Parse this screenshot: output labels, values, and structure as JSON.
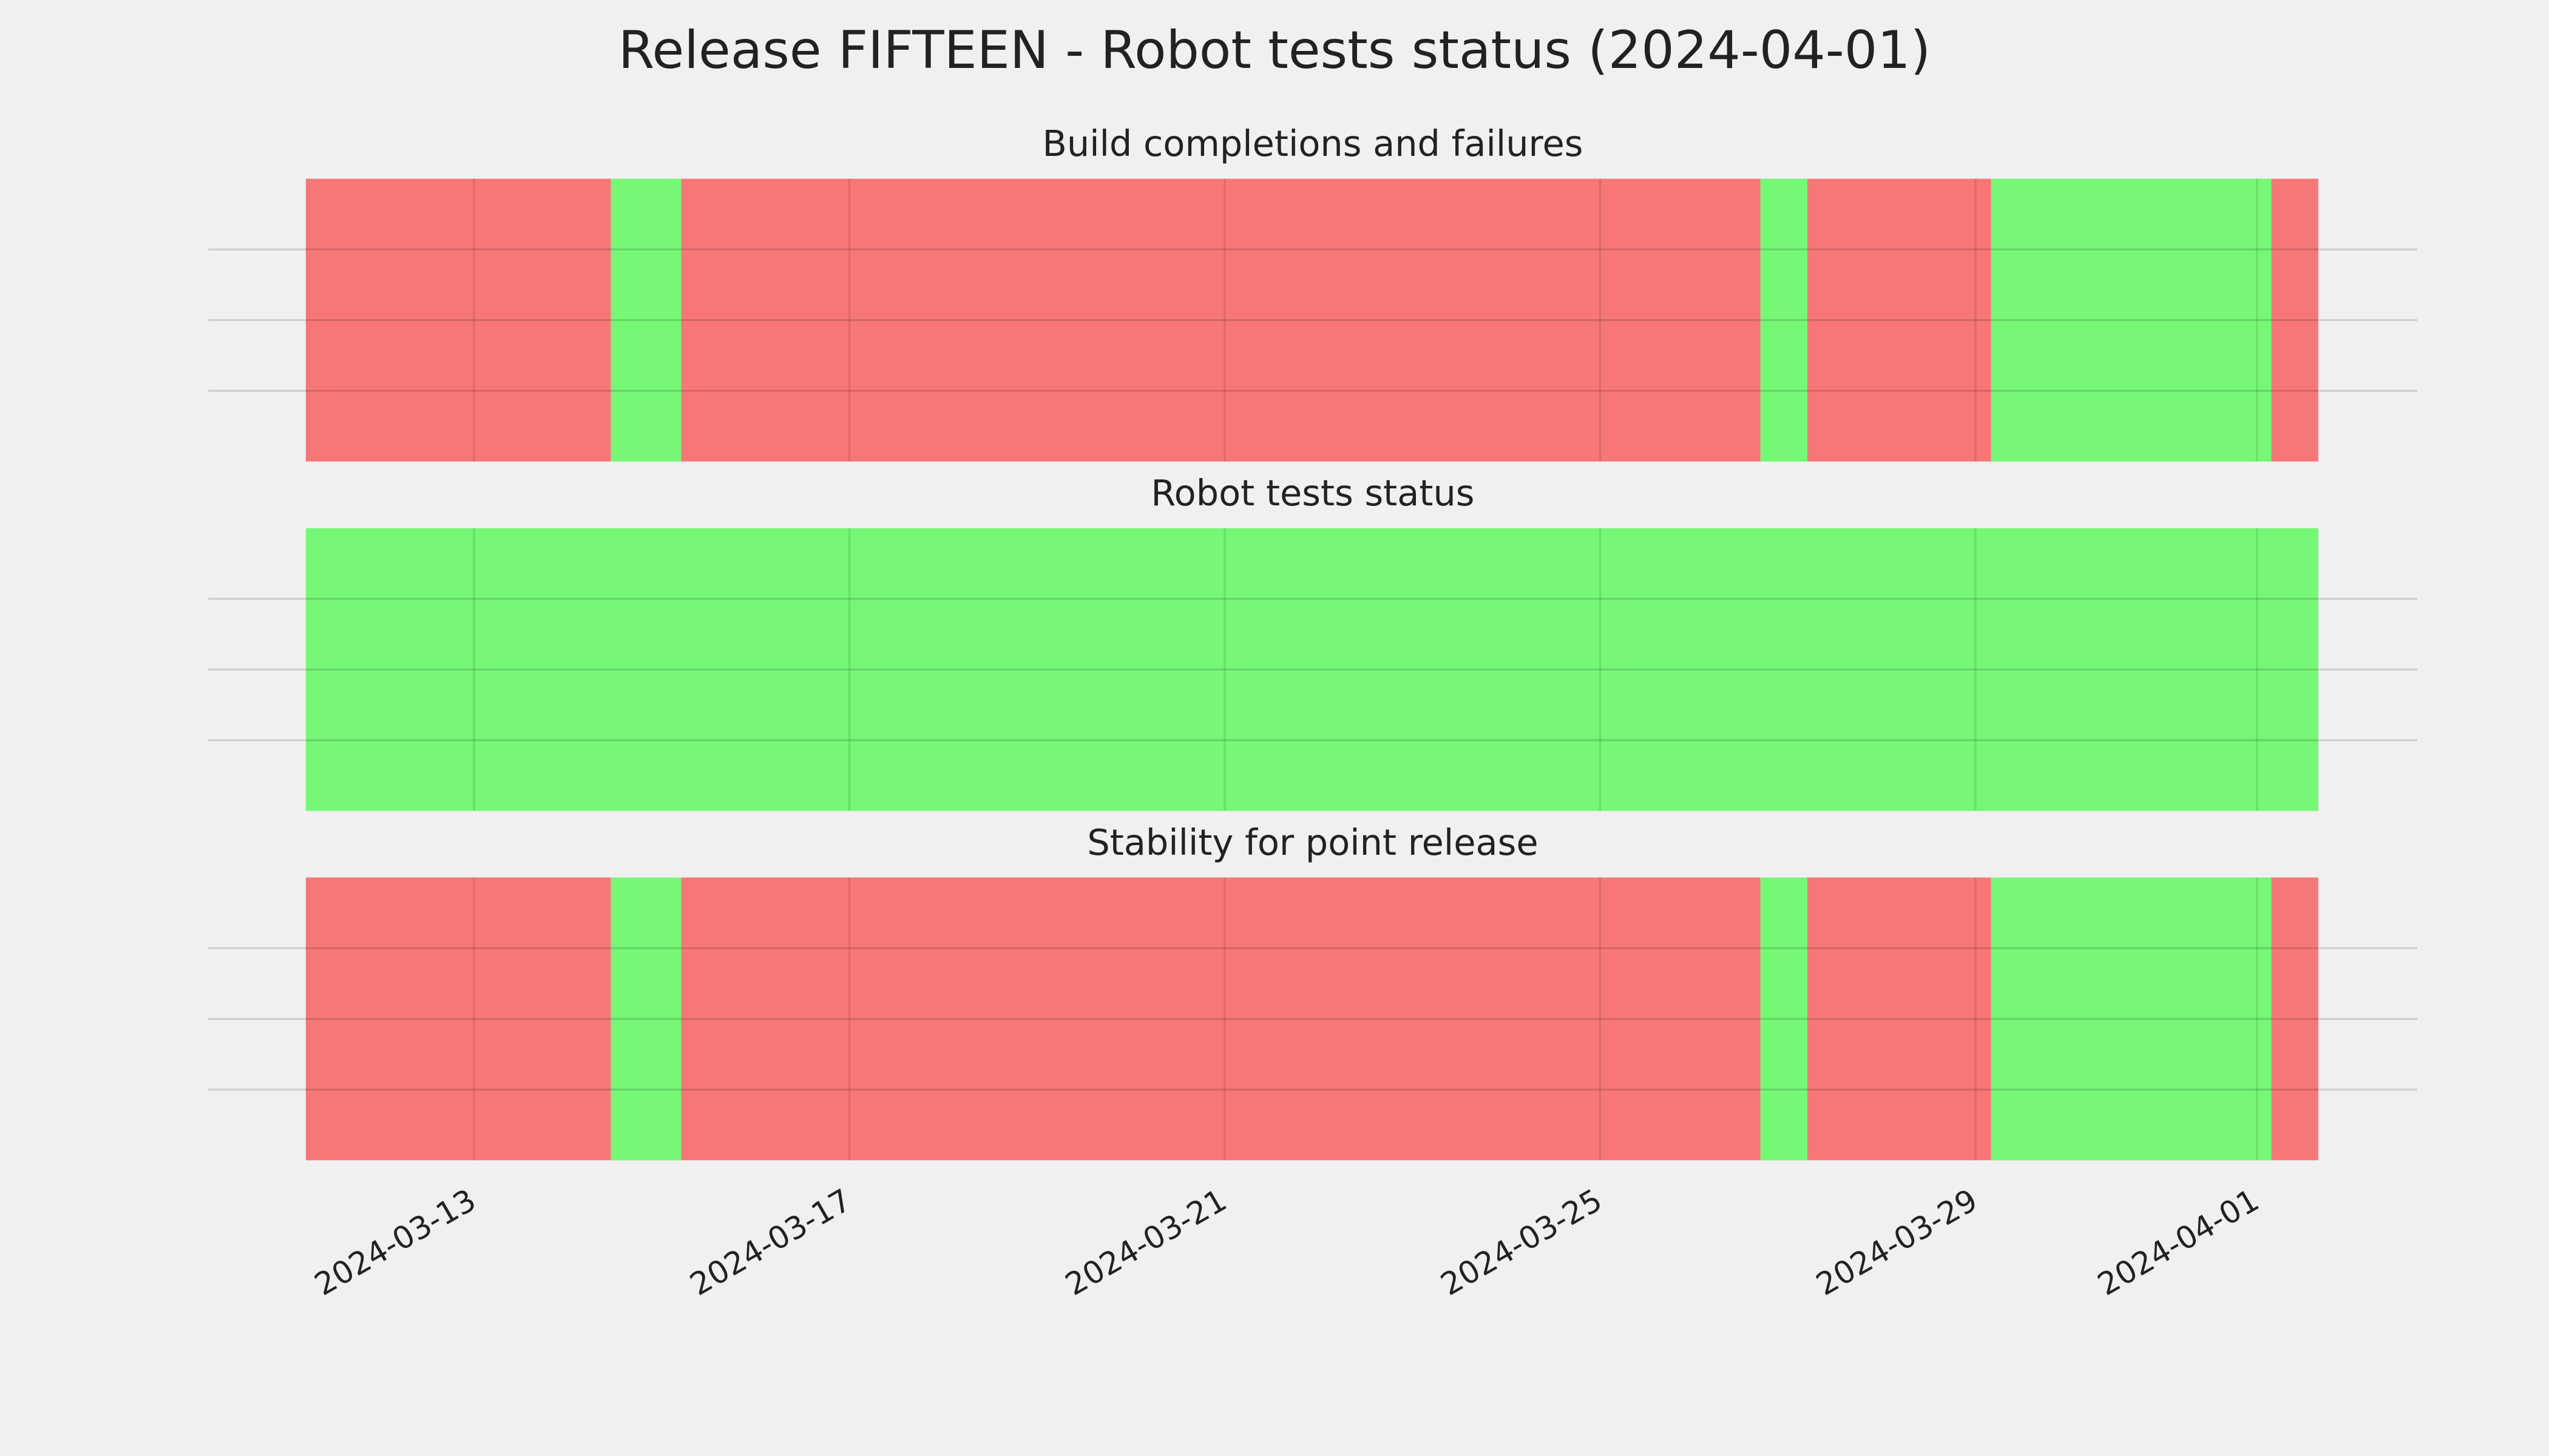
{
  "title": "Release FIFTEEN - Robot tests status (2024-04-01)",
  "chart_data": [
    {
      "type": "timeline",
      "title": "Build completions and failures",
      "xlim": [
        "2024-03-10T04:00",
        "2024-04-02T17:00"
      ],
      "xticks": [
        "2024-03-13",
        "2024-03-17",
        "2024-03-21",
        "2024-03-25",
        "2024-03-29",
        "2024-04-01"
      ],
      "ylim": [
        0,
        1
      ],
      "ygrid": [
        0.25,
        0.5,
        0.75
      ],
      "grid": true,
      "segments": [
        {
          "start": "2024-03-11T05:00",
          "end": "2024-03-14T11:00",
          "color": "#f77777"
        },
        {
          "start": "2024-03-14T11:00",
          "end": "2024-03-15T05:00",
          "color": "#76f776"
        },
        {
          "start": "2024-03-15T05:00",
          "end": "2024-03-26T17:00",
          "color": "#f77777"
        },
        {
          "start": "2024-03-26T17:00",
          "end": "2024-03-27T05:00",
          "color": "#76f776"
        },
        {
          "start": "2024-03-27T05:00",
          "end": "2024-03-29T04:00",
          "color": "#f77777"
        },
        {
          "start": "2024-03-29T04:00",
          "end": "2024-04-01T03:40",
          "color": "#76f776"
        },
        {
          "start": "2024-04-01T03:40",
          "end": "2024-04-01T15:40",
          "color": "#f77777"
        }
      ]
    },
    {
      "type": "timeline",
      "title": "Robot tests status",
      "xlim": [
        "2024-03-10T04:00",
        "2024-04-02T17:00"
      ],
      "xticks": [
        "2024-03-13",
        "2024-03-17",
        "2024-03-21",
        "2024-03-25",
        "2024-03-29",
        "2024-04-01"
      ],
      "ylim": [
        0,
        1
      ],
      "ygrid": [
        0.25,
        0.5,
        0.75
      ],
      "grid": true,
      "segments": [
        {
          "start": "2024-03-11T05:00",
          "end": "2024-04-01T15:40",
          "color": "#76f776"
        }
      ]
    },
    {
      "type": "timeline",
      "title": "Stability for point release",
      "xlim": [
        "2024-03-10T04:00",
        "2024-04-02T17:00"
      ],
      "xticks": [
        "2024-03-13",
        "2024-03-17",
        "2024-03-21",
        "2024-03-25",
        "2024-03-29",
        "2024-04-01"
      ],
      "ylim": [
        0,
        1
      ],
      "ygrid": [
        0.25,
        0.5,
        0.75
      ],
      "grid": true,
      "show_xtick_labels": true,
      "segments": [
        {
          "start": "2024-03-11T05:00",
          "end": "2024-03-14T11:00",
          "color": "#f77777"
        },
        {
          "start": "2024-03-14T11:00",
          "end": "2024-03-15T05:00",
          "color": "#76f776"
        },
        {
          "start": "2024-03-15T05:00",
          "end": "2024-03-26T17:00",
          "color": "#f77777"
        },
        {
          "start": "2024-03-26T17:00",
          "end": "2024-03-27T05:00",
          "color": "#76f776"
        },
        {
          "start": "2024-03-27T05:00",
          "end": "2024-03-29T04:00",
          "color": "#f77777"
        },
        {
          "start": "2024-03-29T04:00",
          "end": "2024-04-01T03:40",
          "color": "#76f776"
        },
        {
          "start": "2024-04-01T03:40",
          "end": "2024-04-01T15:40",
          "color": "#f77777"
        }
      ]
    }
  ]
}
